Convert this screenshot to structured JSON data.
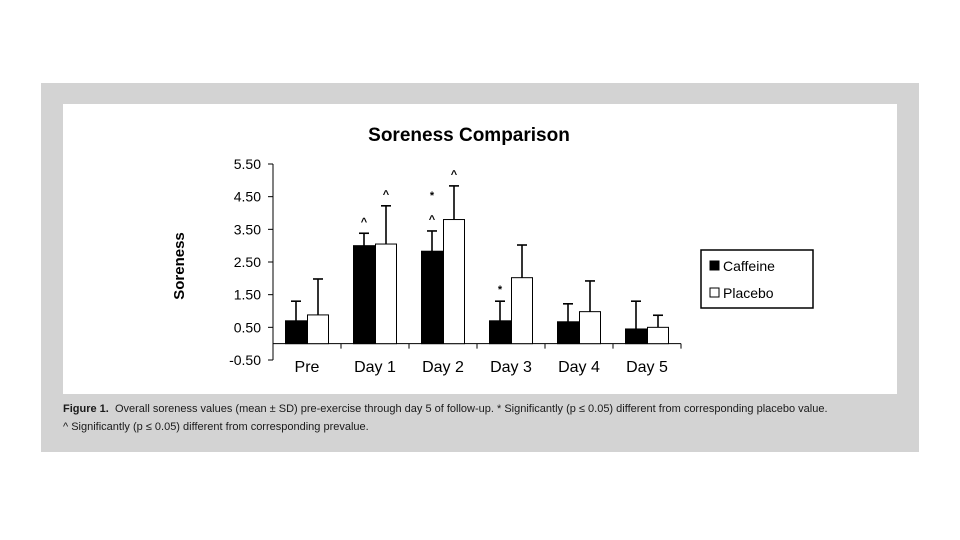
{
  "chart_data": {
    "type": "bar",
    "title": "Soreness Comparison",
    "xlabel": "",
    "ylabel": "Soreness",
    "ylim": [
      -0.5,
      5.5
    ],
    "yticks": [
      "5.50",
      "4.50",
      "3.50",
      "2.50",
      "1.50",
      "0.50",
      "-0.50"
    ],
    "categories": [
      "Pre",
      "Day 1",
      "Day 2",
      "Day 3",
      "Day 4",
      "Day 5"
    ],
    "series": [
      {
        "name": "Caffeine",
        "color": "#000000",
        "values": [
          0.7,
          3.0,
          2.83,
          0.7,
          0.67,
          0.45
        ],
        "sd_upper": [
          1.3,
          3.38,
          3.45,
          1.3,
          1.22,
          1.3
        ]
      },
      {
        "name": "Placebo",
        "color": "#ffffff",
        "values": [
          0.88,
          3.05,
          3.8,
          2.02,
          0.98,
          0.5
        ],
        "sd_upper": [
          1.98,
          4.22,
          4.83,
          3.02,
          1.92,
          0.87
        ]
      }
    ],
    "annotations": [
      {
        "category": "Day 1",
        "series": "Caffeine",
        "symbols": [
          "^"
        ]
      },
      {
        "category": "Day 1",
        "series": "Placebo",
        "symbols": [
          "^"
        ]
      },
      {
        "category": "Day 2",
        "series": "Caffeine",
        "symbols": [
          "*",
          "^"
        ]
      },
      {
        "category": "Day 2",
        "series": "Placebo",
        "symbols": [
          "^"
        ]
      },
      {
        "category": "Day 3",
        "series": "Caffeine",
        "symbols": [
          "*"
        ]
      }
    ],
    "legend_position": "right"
  },
  "caption": {
    "label": "Figure 1.",
    "line1_text": "Overall soreness values (mean ± SD) pre-exercise through day 5 of follow-up. * Significantly (p ≤ 0.05) different from corresponding placebo value.",
    "line2_text": "^ Significantly (p ≤ 0.05) different from corresponding prevalue."
  }
}
